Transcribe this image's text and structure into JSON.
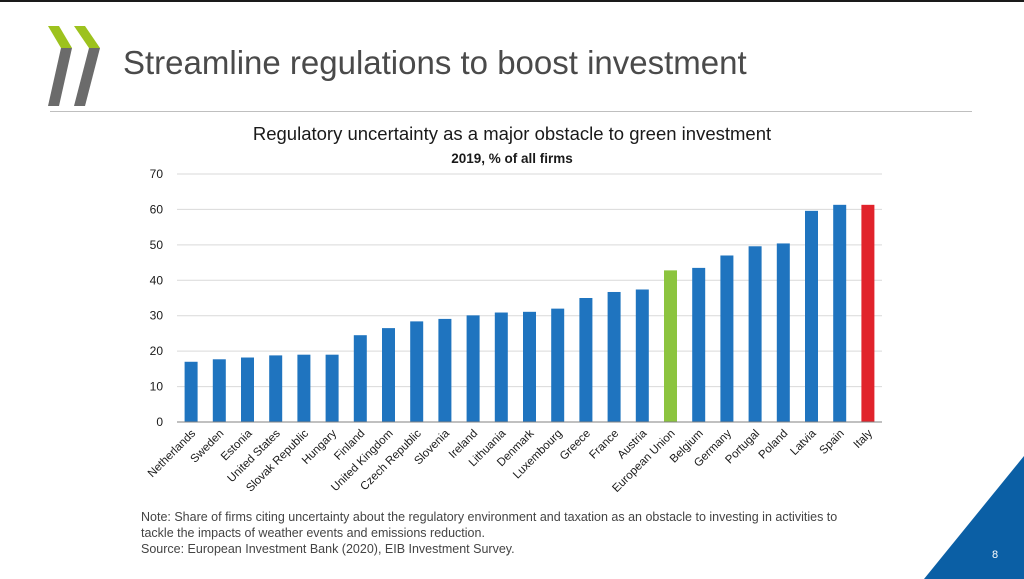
{
  "slide": {
    "title": "Streamline regulations to boost investment",
    "page_number": "8",
    "note": "Note: Share of firms citing uncertainty about the regulatory environment and taxation as an obstacle to investing in activities to tackle the impacts of weather events and emissions reduction.",
    "source": "Source: European Investment Bank (2020), EIB Investment Survey.",
    "colors": {
      "logo_green": "#9dc21e",
      "logo_grey": "#6b6b6b",
      "corner_blue": "#0b5fa5"
    }
  },
  "chart_data": {
    "type": "bar",
    "title": "Regulatory uncertainty as a major obstacle to green investment",
    "subtitle": "2019, % of all firms",
    "xlabel": "",
    "ylabel": "",
    "ylim": [
      0,
      70
    ],
    "yticks": [
      0,
      10,
      20,
      30,
      40,
      50,
      60,
      70
    ],
    "grid": true,
    "categories": [
      "Netherlands",
      "Sweden",
      "Estonia",
      "United States",
      "Slovak Republic",
      "Hungary",
      "Finland",
      "United Kingdom",
      "Czech Republic",
      "Slovenia",
      "Ireland",
      "Lithuania",
      "Denmark",
      "Luxembourg",
      "Greece",
      "France",
      "Austria",
      "European Union",
      "Belgium",
      "Germany",
      "Portugal",
      "Poland",
      "Latvia",
      "Spain",
      "Italy"
    ],
    "values": [
      17,
      17.7,
      18.2,
      18.8,
      19,
      19,
      24.5,
      26.5,
      28.4,
      29.1,
      30.1,
      30.9,
      31.1,
      32,
      35,
      36.7,
      37.4,
      42.8,
      43.5,
      47,
      49.6,
      50.4,
      59.6,
      61.3,
      61.3
    ],
    "bar_colors": [
      "#1f74bf",
      "#1f74bf",
      "#1f74bf",
      "#1f74bf",
      "#1f74bf",
      "#1f74bf",
      "#1f74bf",
      "#1f74bf",
      "#1f74bf",
      "#1f74bf",
      "#1f74bf",
      "#1f74bf",
      "#1f74bf",
      "#1f74bf",
      "#1f74bf",
      "#1f74bf",
      "#1f74bf",
      "#8cc43f",
      "#1f74bf",
      "#1f74bf",
      "#1f74bf",
      "#1f74bf",
      "#1f74bf",
      "#1f74bf",
      "#e1232b"
    ]
  }
}
